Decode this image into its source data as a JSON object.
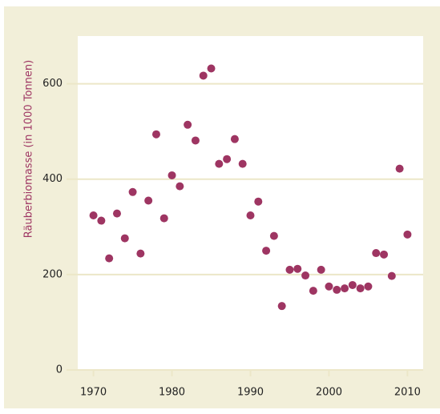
{
  "chart_data": {
    "type": "scatter",
    "ylabel": "Räuberbiomasse (in 1000 Tonnen)",
    "x": [
      1970,
      1971,
      1972,
      1973,
      1974,
      1975,
      1976,
      1977,
      1978,
      1979,
      1980,
      1981,
      1982,
      1983,
      1984,
      1985,
      1986,
      1987,
      1988,
      1989,
      1990,
      1991,
      1992,
      1993,
      1994,
      1995,
      1996,
      1997,
      1998,
      1999,
      2000,
      2001,
      2002,
      2003,
      2004,
      2005,
      2006,
      2007,
      2008,
      2009,
      2010
    ],
    "values": [
      324,
      313,
      234,
      328,
      276,
      373,
      244,
      355,
      494,
      318,
      408,
      385,
      514,
      481,
      617,
      632,
      432,
      442,
      484,
      432,
      324,
      353,
      250,
      281,
      134,
      210,
      212,
      198,
      166,
      210,
      175,
      168,
      171,
      178,
      171,
      175,
      245,
      242,
      197,
      422,
      284
    ],
    "color": "#9e3562",
    "xlim": [
      1968,
      2012
    ],
    "xticks": [
      1970,
      1980,
      1990,
      2000,
      2010
    ],
    "ylim": [
      0,
      700
    ],
    "yticks": [
      0,
      200,
      400,
      600
    ],
    "grid": true
  }
}
